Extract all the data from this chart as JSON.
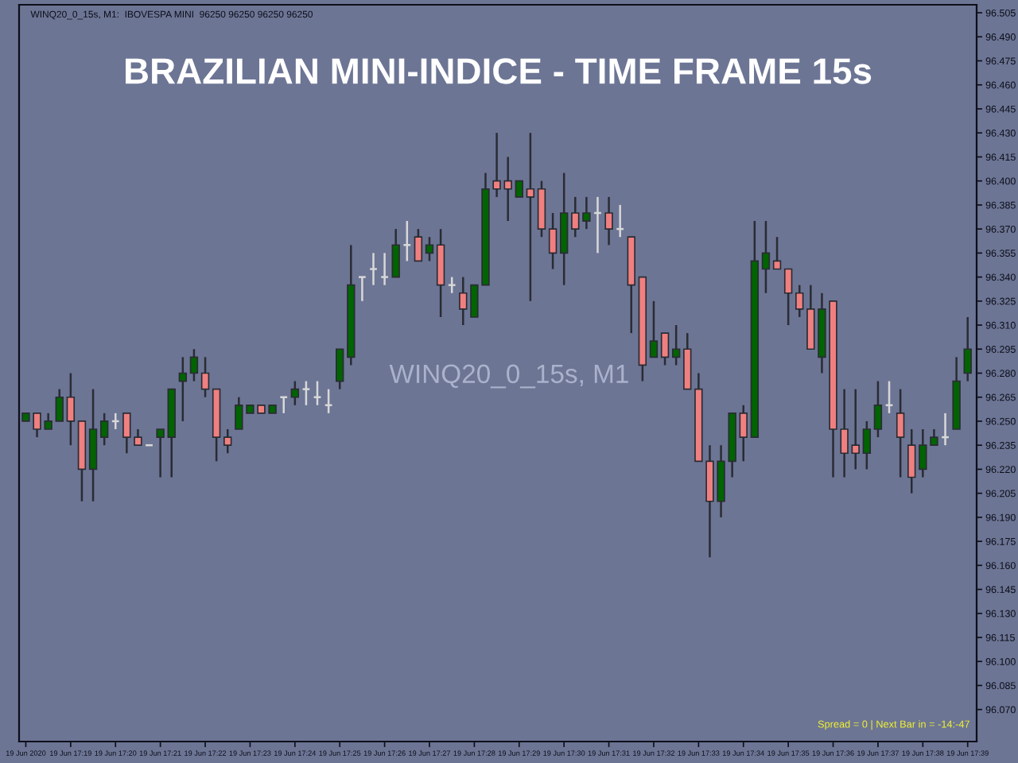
{
  "chart_data": {
    "type": "candlestick",
    "title": "BRAZILIAN MINI-INDICE - TIME FRAME 15s",
    "annotations": [
      "WINQ20_0_15s, M1:  IBOVESPA MINI  96250 96250 96250 96250",
      "WINQ20_0_15s, M1",
      "Spread = 0 | Next Bar in = -14:-47"
    ],
    "categories": [
      "19 Jun 2020",
      null,
      null,
      null,
      "19 Jun 17:19",
      null,
      null,
      null,
      "19 Jun 17:20",
      null,
      null,
      null,
      "19 Jun 17:21",
      null,
      null,
      null,
      "19 Jun 17:22",
      null,
      null,
      null,
      "19 Jun 17:23",
      null,
      null,
      null,
      "19 Jun 17:24",
      null,
      null,
      null,
      "19 Jun 17:25",
      null,
      null,
      null,
      "19 Jun 17:26",
      null,
      null,
      null,
      "19 Jun 17:27",
      null,
      null,
      null,
      "19 Jun 17:28",
      null,
      null,
      null,
      "19 Jun 17:29",
      null,
      null,
      null,
      "19 Jun 17:30",
      null,
      null,
      null,
      "19 Jun 17:31",
      null,
      null,
      null,
      "19 Jun 17:32",
      null,
      null,
      null,
      "19 Jun 17:33",
      null,
      null,
      null,
      "19 Jun 17:34",
      null,
      null,
      null,
      "19 Jun 17:35",
      null,
      null,
      null,
      "19 Jun 17:36",
      null,
      null,
      null,
      "19 Jun 17:37",
      null,
      null,
      null,
      "19 Jun 17:38",
      null,
      null,
      null,
      "19 Jun 17:39"
    ],
    "ohlc": [
      [
        96250,
        96255,
        96250,
        96255
      ],
      [
        96255,
        96255,
        96240,
        96245
      ],
      [
        96245,
        96255,
        96245,
        96250
      ],
      [
        96250,
        96270,
        96250,
        96265
      ],
      [
        96265,
        96280,
        96235,
        96250
      ],
      [
        96250,
        96250,
        96200,
        96220
      ],
      [
        96220,
        96270,
        96200,
        96245
      ],
      [
        96240,
        96255,
        96235,
        96250
      ],
      [
        96250,
        96255,
        96245,
        96250
      ],
      [
        96255,
        96255,
        96230,
        96240
      ],
      [
        96240,
        96245,
        96235,
        96235
      ],
      [
        96235,
        96235,
        96235,
        96235
      ],
      [
        96240,
        96245,
        96215,
        96245
      ],
      [
        96240,
        96270,
        96215,
        96270
      ],
      [
        96275,
        96290,
        96250,
        96280
      ],
      [
        96280,
        96295,
        96275,
        96290
      ],
      [
        96280,
        96290,
        96265,
        96270
      ],
      [
        96270,
        96270,
        96225,
        96240
      ],
      [
        96240,
        96245,
        96230,
        96235
      ],
      [
        96245,
        96265,
        96245,
        96260
      ],
      [
        96255,
        96260,
        96255,
        96260
      ],
      [
        96260,
        96260,
        96255,
        96255
      ],
      [
        96255,
        96260,
        96255,
        96260
      ],
      [
        96265,
        96265,
        96255,
        96265
      ],
      [
        96265,
        96275,
        96260,
        96270
      ],
      [
        96270,
        96275,
        96260,
        96270
      ],
      [
        96265,
        96275,
        96260,
        96265
      ],
      [
        96260,
        96270,
        96255,
        96260
      ],
      [
        96275,
        96295,
        96270,
        96295
      ],
      [
        96290,
        96360,
        96285,
        96335
      ],
      [
        96340,
        96340,
        96325,
        96340
      ],
      [
        96345,
        96355,
        96335,
        96345
      ],
      [
        96340,
        96355,
        96335,
        96340
      ],
      [
        96340,
        96370,
        96340,
        96360
      ],
      [
        96360,
        96375,
        96350,
        96360
      ],
      [
        96365,
        96370,
        96350,
        96350
      ],
      [
        96355,
        96365,
        96350,
        96360
      ],
      [
        96360,
        96370,
        96315,
        96335
      ],
      [
        96335,
        96340,
        96330,
        96335
      ],
      [
        96330,
        96340,
        96310,
        96320
      ],
      [
        96315,
        96335,
        96315,
        96335
      ],
      [
        96335,
        96405,
        96335,
        96395
      ],
      [
        96400,
        96430,
        96390,
        96395
      ],
      [
        96400,
        96415,
        96375,
        96395
      ],
      [
        96390,
        96400,
        96390,
        96400
      ],
      [
        96395,
        96430,
        96325,
        96390
      ],
      [
        96395,
        96400,
        96365,
        96370
      ],
      [
        96370,
        96380,
        96345,
        96355
      ],
      [
        96355,
        96405,
        96335,
        96380
      ],
      [
        96380,
        96390,
        96365,
        96370
      ],
      [
        96375,
        96390,
        96370,
        96380
      ],
      [
        96380,
        96390,
        96355,
        96380
      ],
      [
        96380,
        96390,
        96360,
        96370
      ],
      [
        96370,
        96385,
        96365,
        96370
      ],
      [
        96365,
        96365,
        96305,
        96335
      ],
      [
        96340,
        96340,
        96275,
        96285
      ],
      [
        96290,
        96325,
        96290,
        96300
      ],
      [
        96305,
        96305,
        96285,
        96290
      ],
      [
        96290,
        96310,
        96285,
        96295
      ],
      [
        96295,
        96305,
        96270,
        96270
      ],
      [
        96270,
        96280,
        96225,
        96225
      ],
      [
        96225,
        96235,
        96165,
        96200
      ],
      [
        96200,
        96235,
        96190,
        96225
      ],
      [
        96225,
        96255,
        96215,
        96255
      ],
      [
        96255,
        96260,
        96225,
        96240
      ],
      [
        96240,
        96375,
        96240,
        96350
      ],
      [
        96345,
        96375,
        96330,
        96355
      ],
      [
        96350,
        96365,
        96345,
        96345
      ],
      [
        96345,
        96345,
        96310,
        96330
      ],
      [
        96330,
        96335,
        96315,
        96320
      ],
      [
        96320,
        96335,
        96295,
        96295
      ],
      [
        96290,
        96330,
        96280,
        96320
      ],
      [
        96325,
        96325,
        96215,
        96245
      ],
      [
        96245,
        96270,
        96215,
        96230
      ],
      [
        96235,
        96270,
        96220,
        96230
      ],
      [
        96230,
        96250,
        96220,
        96245
      ],
      [
        96245,
        96275,
        96240,
        96260
      ],
      [
        96260,
        96275,
        96255,
        96260
      ],
      [
        96255,
        96270,
        96215,
        96240
      ],
      [
        96235,
        96245,
        96205,
        96215
      ],
      [
        96220,
        96245,
        96215,
        96235
      ],
      [
        96235,
        96245,
        96235,
        96240
      ],
      [
        96240,
        96255,
        96235,
        96240
      ],
      [
        96245,
        96290,
        96245,
        96275
      ],
      [
        96280,
        96315,
        96275,
        96295
      ]
    ],
    "colors": [
      "#006400",
      "#f08080",
      "#006400",
      "#006400",
      "#f08080",
      "#f08080",
      "#006400",
      "#006400",
      "#d8d8d8",
      "#f08080",
      "#f08080",
      "#d8d8d8",
      "#006400",
      "#006400",
      "#006400",
      "#006400",
      "#f08080",
      "#f08080",
      "#f08080",
      "#006400",
      "#006400",
      "#f08080",
      "#006400",
      "#d8d8d8",
      "#006400",
      "#d8d8d8",
      "#d8d8d8",
      "#d8d8d8",
      "#006400",
      "#006400",
      "#d8d8d8",
      "#d8d8d8",
      "#d8d8d8",
      "#006400",
      "#d8d8d8",
      "#f08080",
      "#006400",
      "#f08080",
      "#d8d8d8",
      "#f08080",
      "#006400",
      "#006400",
      "#f08080",
      "#f08080",
      "#006400",
      "#f08080",
      "#f08080",
      "#f08080",
      "#006400",
      "#f08080",
      "#006400",
      "#d8d8d8",
      "#f08080",
      "#d8d8d8",
      "#f08080",
      "#f08080",
      "#006400",
      "#f08080",
      "#006400",
      "#f08080",
      "#f08080",
      "#f08080",
      "#006400",
      "#006400",
      "#f08080",
      "#006400",
      "#006400",
      "#f08080",
      "#f08080",
      "#f08080",
      "#f08080",
      "#006400",
      "#f08080",
      "#f08080",
      "#f08080",
      "#006400",
      "#006400",
      "#d8d8d8",
      "#f08080",
      "#f08080",
      "#006400",
      "#006400",
      "#d8d8d8",
      "#006400",
      "#006400"
    ],
    "ylim": [
      96050,
      96510
    ],
    "yticks": [
      {
        "value": 96505,
        "label": "96.505"
      },
      {
        "value": 96490,
        "label": "96.490"
      },
      {
        "value": 96475,
        "label": "96.475"
      },
      {
        "value": 96460,
        "label": "96.460"
      },
      {
        "value": 96445,
        "label": "96.445"
      },
      {
        "value": 96430,
        "label": "96.430"
      },
      {
        "value": 96415,
        "label": "96.415"
      },
      {
        "value": 96400,
        "label": "96.400"
      },
      {
        "value": 96385,
        "label": "96.385"
      },
      {
        "value": 96370,
        "label": "96.370"
      },
      {
        "value": 96355,
        "label": "96.355"
      },
      {
        "value": 96340,
        "label": "96.340"
      },
      {
        "value": 96325,
        "label": "96.325"
      },
      {
        "value": 96310,
        "label": "96.310"
      },
      {
        "value": 96295,
        "label": "96.295"
      },
      {
        "value": 96280,
        "label": "96.280"
      },
      {
        "value": 96265,
        "label": "96.265"
      },
      {
        "value": 96250,
        "label": "96.250"
      },
      {
        "value": 96235,
        "label": "96.235"
      },
      {
        "value": 96220,
        "label": "96.220"
      },
      {
        "value": 96205,
        "label": "96.205"
      },
      {
        "value": 96190,
        "label": "96.190"
      },
      {
        "value": 96175,
        "label": "96.175"
      },
      {
        "value": 96160,
        "label": "96.160"
      },
      {
        "value": 96145,
        "label": "96.145"
      },
      {
        "value": 96130,
        "label": "96.130"
      },
      {
        "value": 96115,
        "label": "96.115"
      },
      {
        "value": 96100,
        "label": "96.100"
      },
      {
        "value": 96085,
        "label": "96.085"
      },
      {
        "value": 96070,
        "label": "96.070"
      }
    ]
  }
}
